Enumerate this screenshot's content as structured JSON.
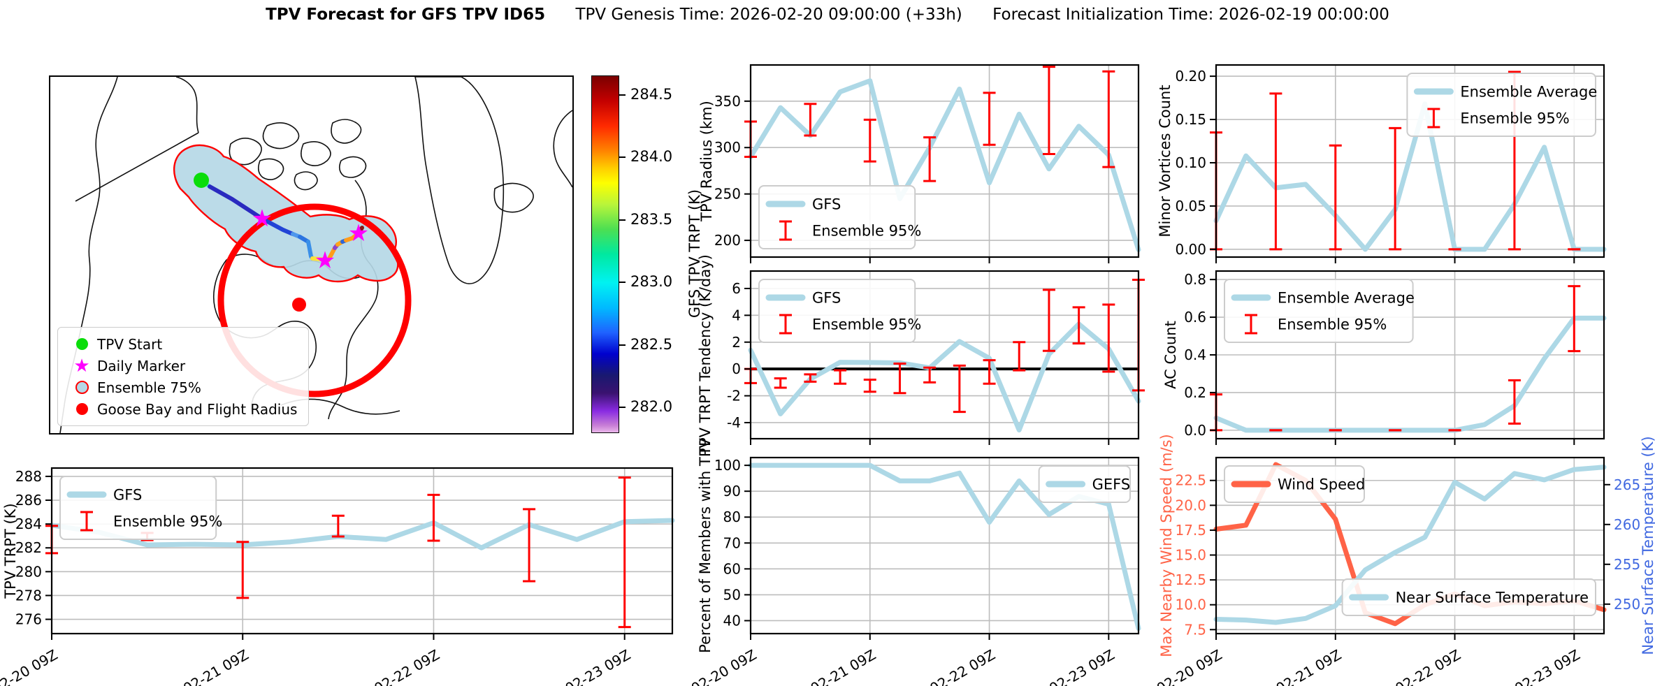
{
  "title": {
    "main": "TPV Forecast for GFS TPV ID65",
    "genesis": "TPV Genesis Time: 2026-02-20 09:00:00 (+33h)",
    "init": "Forecast Initialization Time: 2026-02-19 00:00:00"
  },
  "colors": {
    "gfs": "#ADD8E6",
    "err": "#FF0000",
    "wind": "#FF6347",
    "temp": "#4169E1",
    "grid": "#BDBDBD",
    "tpv_start": "#0ADD0A",
    "daily_marker": "#FF00FF",
    "ensemble_fill": "#B5D8E6",
    "ensemble_edge": "#FF0000",
    "goose_bay": "#FF0000"
  },
  "map": {
    "legend": [
      {
        "label": "TPV Start",
        "marker": "green-circle"
      },
      {
        "label": "Daily Marker",
        "marker": "magenta-star"
      },
      {
        "label": "Ensemble 75%",
        "marker": "red-ring-lightblue"
      },
      {
        "label": "Goose Bay and Flight Radius",
        "marker": "red-circle"
      }
    ]
  },
  "colorbar": {
    "label": "GFS TPV TRPT (K)",
    "vmin": 281.8,
    "vmax": 284.65,
    "ticks": [
      "284.5",
      "284.0",
      "283.5",
      "283.0",
      "282.5",
      "282.0"
    ],
    "tick_values": [
      284.5,
      284.0,
      283.5,
      283.0,
      282.5,
      282.0
    ]
  },
  "x_axis": {
    "xlim": [
      0,
      78
    ],
    "hours": [
      0,
      6,
      12,
      18,
      24,
      30,
      36,
      42,
      48,
      54,
      60,
      66,
      72,
      78
    ],
    "tick_hours": [
      0,
      24,
      48,
      72
    ],
    "tick_labels": [
      "02-20 09Z",
      "02-21 09Z",
      "02-22 09Z",
      "02-23 09Z"
    ]
  },
  "chart_data": [
    {
      "id": "trpt",
      "type": "line",
      "title": "",
      "xlabel": "",
      "ylabel": "TPV TRPT (K)",
      "ylabel_off": 52,
      "ylim": [
        274.8,
        288.7
      ],
      "yticks": [
        {
          "v": 276,
          "t": "276"
        },
        {
          "v": 278,
          "t": "278"
        },
        {
          "v": 280,
          "t": "280"
        },
        {
          "v": 282,
          "t": "282"
        },
        {
          "v": 284,
          "t": "284"
        },
        {
          "v": 286,
          "t": "286"
        },
        {
          "v": 288,
          "t": "288"
        }
      ],
      "series": [
        {
          "name": "GFS",
          "color": "gfs",
          "values": [
            283.9,
            283.3,
            282.25,
            282.3,
            282.25,
            282.5,
            282.95,
            282.7,
            284.1,
            282.0,
            283.95,
            282.7,
            284.2,
            284.3
          ]
        }
      ],
      "errorbars": {
        "hours": [
          0,
          12,
          24,
          36,
          48,
          60,
          72
        ],
        "ranges": [
          [
            281.55,
            283.85
          ],
          [
            282.65,
            283.25
          ],
          [
            277.8,
            282.5
          ],
          [
            282.95,
            284.7
          ],
          [
            282.6,
            286.45
          ],
          [
            279.2,
            285.25
          ],
          [
            275.35,
            287.9
          ]
        ]
      },
      "legends": [
        {
          "pos": "tl",
          "entries": [
            {
              "label": "GFS",
              "glyph": "line",
              "color": "gfs"
            },
            {
              "label": "Ensemble 95%",
              "glyph": "err",
              "color": "err"
            }
          ]
        }
      ],
      "show_xlabels": true
    },
    {
      "id": "radius",
      "type": "line",
      "title": "",
      "xlabel": "",
      "ylabel": "TPV Radius (km)",
      "ylabel_off": 56,
      "ylim": [
        182,
        389
      ],
      "yticks": [
        {
          "v": 200,
          "t": "200"
        },
        {
          "v": 250,
          "t": "250"
        },
        {
          "v": 300,
          "t": "300"
        },
        {
          "v": 350,
          "t": "350"
        }
      ],
      "series": [
        {
          "name": "GFS",
          "color": "gfs",
          "values": [
            290,
            343,
            313,
            360,
            372,
            245,
            300,
            363,
            262,
            336,
            277,
            323,
            292,
            190
          ]
        }
      ],
      "errorbars": {
        "hours": [
          0,
          12,
          24,
          36,
          48,
          60,
          72
        ],
        "ranges": [
          [
            290,
            328
          ],
          [
            313,
            347
          ],
          [
            285,
            330
          ],
          [
            264,
            311
          ],
          [
            303,
            359
          ],
          [
            293,
            387
          ],
          [
            279,
            382
          ]
        ]
      },
      "legends": [
        {
          "pos": "bl",
          "entries": [
            {
              "label": "GFS",
              "glyph": "line",
              "color": "gfs"
            },
            {
              "label": "Ensemble 95%",
              "glyph": "err",
              "color": "err"
            }
          ]
        }
      ],
      "show_xlabels": false
    },
    {
      "id": "tendency",
      "type": "line",
      "title": "",
      "xlabel": "",
      "ylabel": "TPV TRPT Tendency (K/day)",
      "ylabel_off": 58,
      "ylim": [
        -5.2,
        7.3
      ],
      "yticks": [
        {
          "v": -4,
          "t": "-4"
        },
        {
          "v": -2,
          "t": "-2"
        },
        {
          "v": 0,
          "t": "0"
        },
        {
          "v": 2,
          "t": "2"
        },
        {
          "v": 4,
          "t": "4"
        },
        {
          "v": 6,
          "t": "6"
        }
      ],
      "zero_line": true,
      "series": [
        {
          "name": "GFS",
          "color": "gfs",
          "values": [
            1.4,
            -3.35,
            -0.75,
            0.5,
            0.48,
            0.45,
            0.08,
            2.05,
            0.8,
            -4.55,
            1.1,
            3.35,
            1.5,
            -2.4
          ]
        }
      ],
      "errorbars": {
        "hours": [
          0,
          6,
          12,
          18,
          24,
          30,
          36,
          42,
          48,
          54,
          60,
          66,
          72,
          78
        ],
        "ranges": [
          [
            -1.05,
            0.0
          ],
          [
            -1.4,
            -0.7
          ],
          [
            -0.95,
            -0.4
          ],
          [
            -1.1,
            -0.1
          ],
          [
            -1.7,
            -0.8
          ],
          [
            -1.8,
            0.4
          ],
          [
            -1.0,
            0.1
          ],
          [
            -3.2,
            0.25
          ],
          [
            -1.1,
            0.65
          ],
          [
            -0.1,
            2.0
          ],
          [
            1.35,
            5.9
          ],
          [
            1.9,
            4.6
          ],
          [
            -0.2,
            4.8
          ],
          [
            -1.6,
            6.65
          ]
        ]
      },
      "legends": [
        {
          "pos": "tl",
          "entries": [
            {
              "label": "GFS",
              "glyph": "line",
              "color": "gfs"
            },
            {
              "label": "Ensemble 95%",
              "glyph": "err",
              "color": "err"
            }
          ]
        }
      ],
      "show_xlabels": false
    },
    {
      "id": "members",
      "type": "line",
      "title": "",
      "xlabel": "",
      "ylabel": "Percent of Members with TPV",
      "ylabel_off": 58,
      "ylim": [
        35,
        103
      ],
      "yticks": [
        {
          "v": 40,
          "t": "40"
        },
        {
          "v": 50,
          "t": "50"
        },
        {
          "v": 60,
          "t": "60"
        },
        {
          "v": 70,
          "t": "70"
        },
        {
          "v": 80,
          "t": "80"
        },
        {
          "v": 90,
          "t": "90"
        },
        {
          "v": 100,
          "t": "100"
        }
      ],
      "series": [
        {
          "name": "GEFS",
          "color": "gfs",
          "values": [
            100,
            100,
            100,
            100,
            100,
            94,
            94,
            97,
            78,
            94,
            81,
            88,
            85,
            37
          ]
        }
      ],
      "legends": [
        {
          "pos": "tr",
          "entries": [
            {
              "label": "GEFS",
              "glyph": "line",
              "color": "gfs"
            }
          ]
        }
      ],
      "show_xlabels": true
    },
    {
      "id": "minor",
      "type": "line",
      "title": "",
      "xlabel": "",
      "ylabel": "Minor Vortices Count",
      "ylabel_off": 66,
      "ylim": [
        -0.009,
        0.213
      ],
      "yticks": [
        {
          "v": 0.0,
          "t": "0.00"
        },
        {
          "v": 0.05,
          "t": "0.05"
        },
        {
          "v": 0.1,
          "t": "0.10"
        },
        {
          "v": 0.15,
          "t": "0.15"
        },
        {
          "v": 0.2,
          "t": "0.20"
        }
      ],
      "series": [
        {
          "name": "Ensemble Average",
          "color": "gfs",
          "values": [
            0.033,
            0.108,
            0.071,
            0.075,
            0.039,
            0.0,
            0.046,
            0.168,
            0.0,
            0.0,
            0.052,
            0.118,
            0.0,
            0.0
          ]
        }
      ],
      "errorbars": {
        "hours": [
          0,
          12,
          24,
          36,
          48,
          60,
          72
        ],
        "ranges": [
          [
            0,
            0.135
          ],
          [
            0,
            0.18
          ],
          [
            0,
            0.12
          ],
          [
            0,
            0.14
          ],
          [
            0,
            0
          ],
          [
            0,
            0.205
          ],
          [
            0,
            0
          ]
        ]
      },
      "legends": [
        {
          "pos": "tr",
          "entries": [
            {
              "label": "Ensemble Average",
              "glyph": "line",
              "color": "gfs"
            },
            {
              "label": "Ensemble 95%",
              "glyph": "err",
              "color": "err"
            }
          ]
        }
      ],
      "show_xlabels": false
    },
    {
      "id": "ac",
      "type": "line",
      "title": "",
      "xlabel": "",
      "ylabel": "AC Count",
      "ylabel_off": 58,
      "ylim": [
        -0.045,
        0.845
      ],
      "yticks": [
        {
          "v": 0.0,
          "t": "0.0"
        },
        {
          "v": 0.2,
          "t": "0.2"
        },
        {
          "v": 0.4,
          "t": "0.4"
        },
        {
          "v": 0.6,
          "t": "0.6"
        },
        {
          "v": 0.8,
          "t": "0.8"
        }
      ],
      "series": [
        {
          "name": "Ensemble Average",
          "color": "gfs",
          "values": [
            0.065,
            0,
            0,
            0,
            0,
            0,
            0,
            0,
            0,
            0.03,
            0.13,
            0.38,
            0.595,
            0.595
          ]
        }
      ],
      "errorbars": {
        "hours": [
          0,
          12,
          24,
          36,
          48,
          60,
          72
        ],
        "ranges": [
          [
            0,
            0.19
          ],
          [
            0,
            0
          ],
          [
            0,
            0
          ],
          [
            0,
            0
          ],
          [
            0,
            0
          ],
          [
            0.035,
            0.265
          ],
          [
            0.42,
            0.765
          ]
        ]
      },
      "legends": [
        {
          "pos": "tl",
          "entries": [
            {
              "label": "Ensemble Average",
              "glyph": "line",
              "color": "gfs"
            },
            {
              "label": "Ensemble 95%",
              "glyph": "err",
              "color": "err"
            }
          ]
        }
      ],
      "show_xlabels": false
    },
    {
      "id": "wind",
      "type": "line",
      "title": "",
      "xlabel": "",
      "ylabel": "Max Nearby Wind Speed (m/s)",
      "ylabel_off": 64,
      "ylabel_color": "wind",
      "ytick_color": "wind",
      "ylim": [
        7.1,
        24.8
      ],
      "yticks": [
        {
          "v": 7.5,
          "t": "7.5"
        },
        {
          "v": 10.0,
          "t": "10.0"
        },
        {
          "v": 12.5,
          "t": "12.5"
        },
        {
          "v": 15.0,
          "t": "15.0"
        },
        {
          "v": 17.5,
          "t": "17.5"
        },
        {
          "v": 20.0,
          "t": "20.0"
        },
        {
          "v": 22.5,
          "t": "22.5"
        }
      ],
      "right_axis": {
        "label": "Near Surface Temperature (K)",
        "color": "temp",
        "ylim": [
          246.3,
          268.4
        ],
        "yticks": [
          {
            "v": 250,
            "t": "250"
          },
          {
            "v": 255,
            "t": "255"
          },
          {
            "v": 260,
            "t": "260"
          },
          {
            "v": 265,
            "t": "265"
          }
        ]
      },
      "series": [
        {
          "name": "Wind Speed",
          "color": "wind",
          "axis": "left",
          "values": [
            17.6,
            18.0,
            24.1,
            22.5,
            18.6,
            9.2,
            8.1,
            10.0,
            11.1,
            9.9,
            10.3,
            10.1,
            10.4,
            9.5
          ]
        },
        {
          "name": "Near Surface Temperature",
          "color": "gfs",
          "axis": "right",
          "values": [
            248.1,
            248.0,
            247.7,
            248.2,
            249.8,
            254.3,
            256.5,
            258.4,
            265.3,
            263.2,
            266.4,
            265.6,
            266.9,
            267.2
          ]
        }
      ],
      "legends": [
        {
          "pos": "tl",
          "entries": [
            {
              "label": "Wind Speed",
              "glyph": "line",
              "color": "wind"
            }
          ]
        },
        {
          "pos": "br",
          "entries": [
            {
              "label": "Near Surface Temperature",
              "glyph": "line",
              "color": "gfs"
            }
          ]
        }
      ],
      "show_xlabels": true
    }
  ]
}
